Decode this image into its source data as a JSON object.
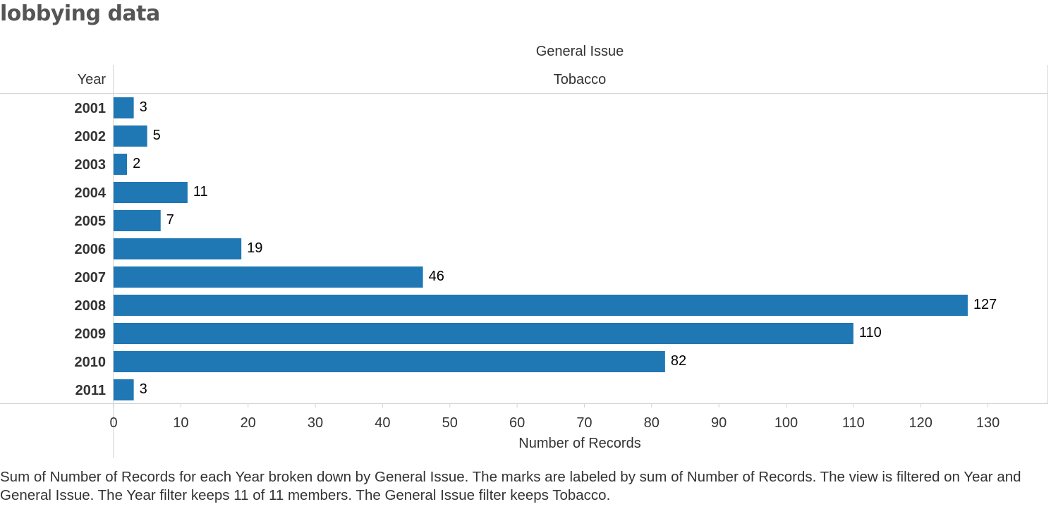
{
  "title": "lobbying data",
  "caption": "Sum of Number of Records for each Year broken down by General Issue.  The marks are labeled by sum of Number of Records. The view is filtered on Year and General Issue. The Year filter keeps 11 of 11 members. The General Issue filter keeps Tobacco.",
  "chart_data": {
    "type": "bar",
    "orientation": "horizontal",
    "column_header_title": "General Issue",
    "column_header_value": "Tobacco",
    "row_header": "Year",
    "categories": [
      "2001",
      "2002",
      "2003",
      "2004",
      "2005",
      "2006",
      "2007",
      "2008",
      "2009",
      "2010",
      "2011"
    ],
    "values": [
      3,
      5,
      2,
      11,
      7,
      19,
      46,
      127,
      110,
      82,
      3
    ],
    "xlabel": "Number of Records",
    "xlim": [
      0,
      130
    ],
    "xticks": [
      0,
      10,
      20,
      30,
      40,
      50,
      60,
      70,
      80,
      90,
      100,
      110,
      120,
      130
    ],
    "data_labels": true,
    "bar_color": "#1f77b4"
  }
}
